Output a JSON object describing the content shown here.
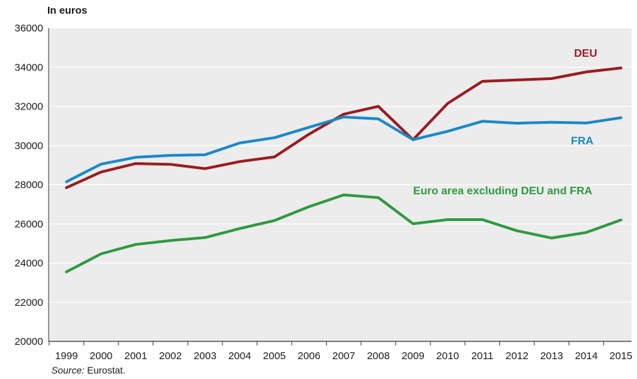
{
  "chart_data": {
    "type": "line",
    "unit_label": "In euros",
    "x": [
      "1999",
      "2000",
      "2001",
      "2002",
      "2003",
      "2004",
      "2005",
      "2006",
      "2007",
      "2008",
      "2009",
      "2010",
      "2011",
      "2012",
      "2013",
      "2014",
      "2015"
    ],
    "yticks": [
      20000,
      22000,
      24000,
      26000,
      28000,
      30000,
      32000,
      34000,
      36000
    ],
    "ylim": [
      20000,
      36000
    ],
    "grid": true,
    "series": [
      {
        "name": "DEU",
        "color": "#9b1b1f",
        "values": [
          27850,
          28650,
          29080,
          29040,
          28820,
          29180,
          29420,
          30580,
          31600,
          32000,
          30300,
          32150,
          33280,
          33350,
          33420,
          33760,
          33960
        ]
      },
      {
        "name": "FRA",
        "color": "#1a88c9",
        "values": [
          28150,
          29050,
          29400,
          29500,
          29530,
          30130,
          30400,
          30930,
          31460,
          31360,
          30300,
          30730,
          31240,
          31140,
          31190,
          31150,
          31420
        ]
      },
      {
        "name": "Euro area excluding DEU and FRA",
        "color": "#2e9a3e",
        "values": [
          23550,
          24470,
          24950,
          25150,
          25300,
          25760,
          26170,
          26880,
          27480,
          27340,
          26010,
          26220,
          26220,
          25650,
          25280,
          25560,
          26200
        ]
      }
    ]
  },
  "source": {
    "label": "Source:",
    "text": "Eurostat."
  }
}
